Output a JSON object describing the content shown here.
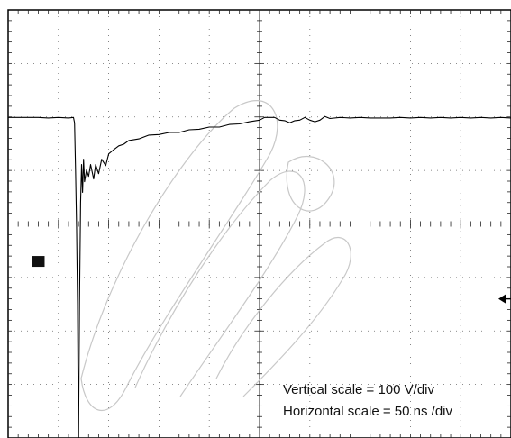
{
  "chart_data": {
    "type": "line",
    "title": "",
    "xlabel": "",
    "ylabel": "",
    "grid": true,
    "x_unit": "ns",
    "y_unit": "V",
    "x_divisions": 10,
    "y_divisions": 8,
    "x_per_div": 50,
    "y_per_div": 100,
    "xlim": [
      0,
      500
    ],
    "ylim": [
      -400,
      400
    ],
    "annotations": [
      "Vertical scale = 100 V/div",
      "Horizontal scale = 50 ns /div"
    ],
    "markers": [
      {
        "type": "trigger-ground",
        "x": 30,
        "y": -70
      },
      {
        "type": "trigger-level-arrow",
        "y": -140
      }
    ],
    "series": [
      {
        "values": [
          [
            0,
            200
          ],
          [
            10,
            198
          ],
          [
            20,
            200
          ],
          [
            30,
            198
          ],
          [
            40,
            199
          ],
          [
            50,
            198
          ],
          [
            60,
            199
          ],
          [
            65,
            198
          ],
          [
            66,
            190
          ],
          [
            67,
            100
          ],
          [
            68,
            0
          ],
          [
            69,
            -150
          ],
          [
            70,
            -420
          ],
          [
            71,
            -150
          ],
          [
            72,
            40
          ],
          [
            73,
            110
          ],
          [
            74,
            60
          ],
          [
            75,
            120
          ],
          [
            76,
            80
          ],
          [
            78,
            100
          ],
          [
            80,
            90
          ],
          [
            82,
            110
          ],
          [
            85,
            85
          ],
          [
            87,
            110
          ],
          [
            90,
            95
          ],
          [
            93,
            120
          ],
          [
            97,
            110
          ],
          [
            100,
            130
          ],
          [
            105,
            140
          ],
          [
            110,
            145
          ],
          [
            115,
            150
          ],
          [
            120,
            155
          ],
          [
            130,
            160
          ],
          [
            140,
            165
          ],
          [
            150,
            168
          ],
          [
            160,
            170
          ],
          [
            170,
            172
          ],
          [
            180,
            175
          ],
          [
            190,
            178
          ],
          [
            200,
            180
          ],
          [
            210,
            182
          ],
          [
            220,
            185
          ],
          [
            230,
            188
          ],
          [
            240,
            190
          ],
          [
            250,
            195
          ],
          [
            255,
            198
          ],
          [
            260,
            200
          ],
          [
            265,
            198
          ],
          [
            270,
            195
          ],
          [
            275,
            192
          ],
          [
            280,
            190
          ],
          [
            285,
            192
          ],
          [
            290,
            195
          ],
          [
            295,
            198
          ],
          [
            300,
            195
          ],
          [
            305,
            190
          ],
          [
            310,
            195
          ],
          [
            315,
            200
          ],
          [
            320,
            198
          ],
          [
            330,
            198
          ],
          [
            340,
            199
          ],
          [
            350,
            198
          ],
          [
            360,
            199
          ],
          [
            370,
            197
          ],
          [
            380,
            199
          ],
          [
            390,
            198
          ],
          [
            400,
            199
          ],
          [
            410,
            198
          ],
          [
            420,
            199
          ],
          [
            430,
            198
          ],
          [
            440,
            199
          ],
          [
            450,
            198
          ],
          [
            460,
            199
          ],
          [
            470,
            198
          ],
          [
            480,
            199
          ],
          [
            490,
            198
          ],
          [
            500,
            199
          ]
        ]
      }
    ]
  }
}
